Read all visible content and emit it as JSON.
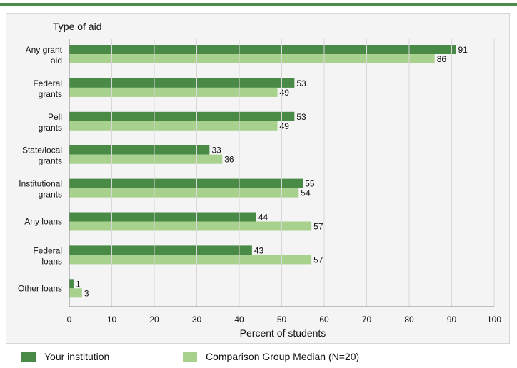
{
  "chart_data": {
    "type": "bar",
    "orientation": "horizontal",
    "title": "",
    "category_axis_title": "Type of aid",
    "xlabel": "Percent of students",
    "xlim": [
      0,
      100
    ],
    "xticks": [
      0,
      10,
      20,
      30,
      40,
      50,
      60,
      70,
      80,
      90,
      100
    ],
    "categories": [
      [
        "Any grant",
        "aid"
      ],
      [
        "Federal",
        "grants"
      ],
      [
        "Pell",
        "grants"
      ],
      [
        "State/local",
        "grants"
      ],
      [
        "Institutional",
        "grants"
      ],
      [
        "Any loans"
      ],
      [
        "Federal",
        "loans"
      ],
      [
        "Other loans"
      ]
    ],
    "series": [
      {
        "name": "Your institution",
        "color": "#4a8a47",
        "values": [
          91,
          53,
          53,
          33,
          55,
          44,
          43,
          1
        ]
      },
      {
        "name": "Comparison Group Median (N=20)",
        "color": "#a9d18e",
        "values": [
          86,
          49,
          49,
          36,
          54,
          57,
          57,
          3
        ]
      }
    ],
    "legend_position": "bottom"
  },
  "legend": {
    "institution_label": "Your institution",
    "comparison_label": "Comparison Group Median (N=20)"
  }
}
